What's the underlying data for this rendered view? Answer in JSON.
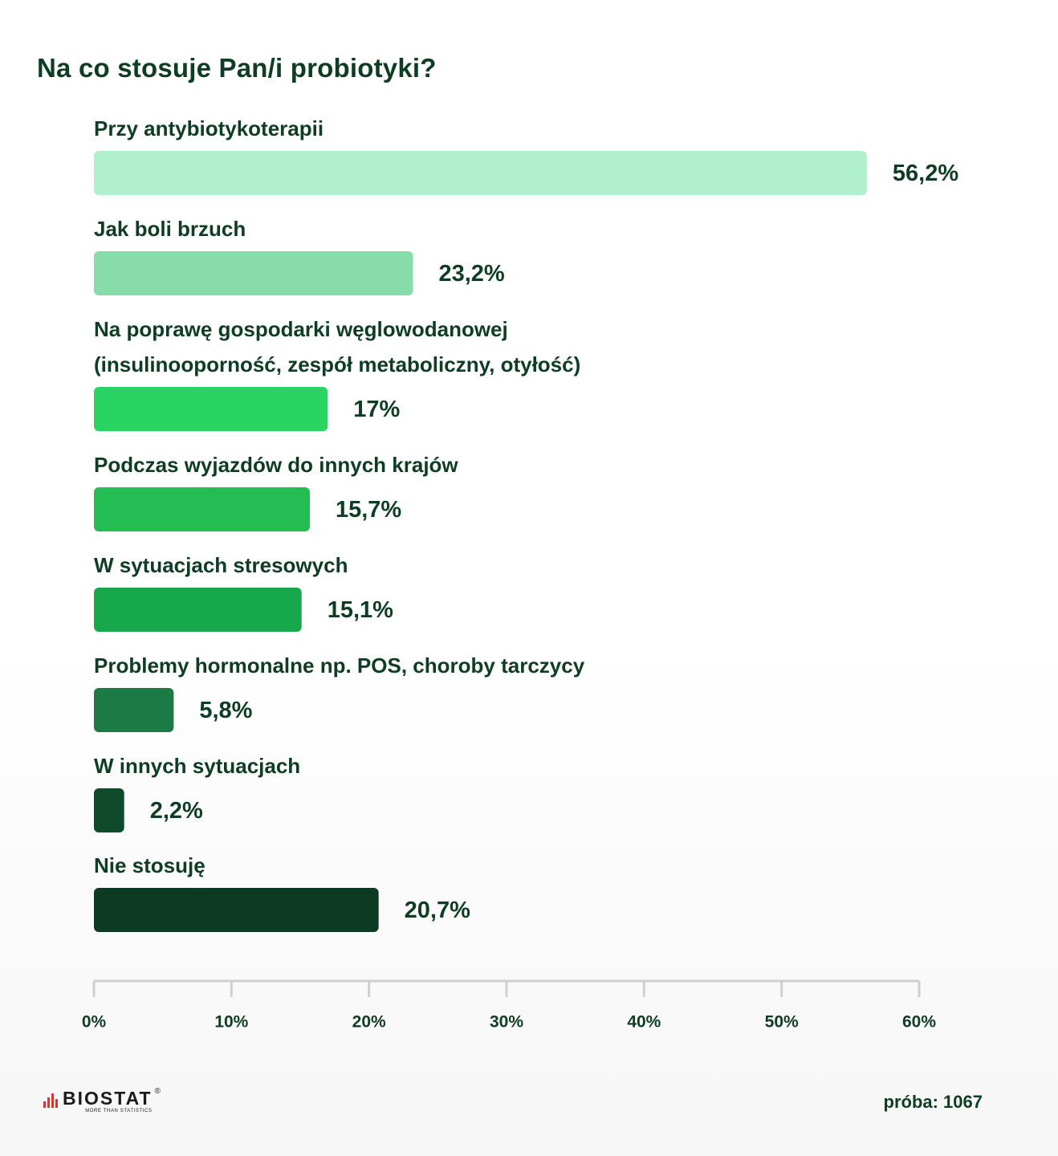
{
  "chart_data": {
    "type": "bar",
    "orientation": "horizontal",
    "title": "Na co stosuje Pan/i probiotyki?",
    "categories": [
      [
        "Przy antybiotykoterapii"
      ],
      [
        "Jak boli brzuch"
      ],
      [
        "Na poprawę gospodarki węglowodanowej",
        "(insulinooporność, zespół metaboliczny, otyłość)"
      ],
      [
        "Podczas wyjazdów do innych krajów"
      ],
      [
        "W sytuacjach stresowych"
      ],
      [
        "Problemy hormonalne np. POS, choroby tarczycy"
      ],
      [
        "W innych sytuacjach"
      ],
      [
        "Nie stosuję"
      ]
    ],
    "values": [
      56.2,
      23.2,
      17,
      15.7,
      15.1,
      5.8,
      2.2,
      20.7
    ],
    "value_labels": [
      "56,2%",
      "23,2%",
      "17%",
      "15,7%",
      "15,1%",
      "5,8%",
      "2,2%",
      "20,7%"
    ],
    "colors": [
      "#b0f0cd",
      "#88dcaa",
      "#2ad462",
      "#24bd53",
      "#16a84a",
      "#1c7a45",
      "#0f4a2c",
      "#0c3a22"
    ],
    "xlim": [
      0,
      60
    ],
    "x_ticks": [
      "0%",
      "10%",
      "20%",
      "30%",
      "40%",
      "50%",
      "60%"
    ],
    "grid": false
  },
  "footer": {
    "brand": "BIOSTAT",
    "tagline": "MORE THAN STATISTICS",
    "registered": "®",
    "sample": "próba: 1067"
  }
}
